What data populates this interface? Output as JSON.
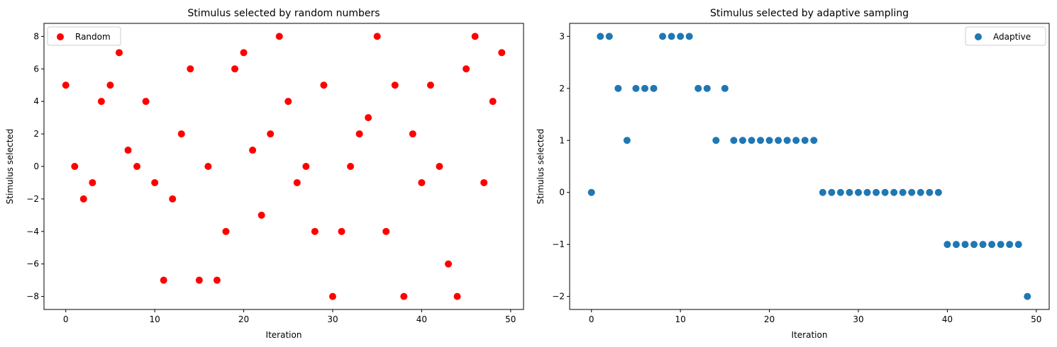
{
  "chart_data": [
    {
      "type": "scatter",
      "title": "Stimulus selected by random numbers",
      "xlabel": "Iteration",
      "ylabel": "Stimulus selected",
      "xlim": [
        -2.45,
        51.45
      ],
      "ylim": [
        -8.8,
        8.8
      ],
      "xticks": [
        0,
        10,
        20,
        30,
        40,
        50
      ],
      "yticks": [
        -8,
        -6,
        -4,
        -2,
        0,
        2,
        4,
        6,
        8
      ],
      "grid": false,
      "legend_position": "upper-left",
      "series": [
        {
          "name": "Random",
          "color": "#ff0000",
          "x": [
            0,
            1,
            2,
            3,
            4,
            5,
            6,
            7,
            8,
            9,
            10,
            11,
            12,
            13,
            14,
            15,
            16,
            17,
            18,
            19,
            20,
            21,
            22,
            23,
            24,
            25,
            26,
            27,
            28,
            29,
            30,
            31,
            32,
            33,
            34,
            35,
            36,
            37,
            38,
            39,
            40,
            41,
            42,
            43,
            44,
            45,
            46,
            47,
            48,
            49
          ],
          "y": [
            5,
            0,
            -2,
            -1,
            4,
            5,
            7,
            1,
            0,
            4,
            -1,
            -7,
            -2,
            2,
            6,
            -7,
            0,
            -7,
            -4,
            6,
            7,
            1,
            -3,
            2,
            8,
            4,
            -1,
            0,
            -4,
            5,
            -8,
            -4,
            0,
            2,
            3,
            8,
            -4,
            5,
            -8,
            2,
            -1,
            5,
            0,
            -6,
            -8,
            6,
            8,
            -1,
            4,
            7
          ]
        }
      ]
    },
    {
      "type": "scatter",
      "title": "Stimulus selected by adaptive sampling",
      "xlabel": "Iteration",
      "ylabel": "Stimulus selected",
      "xlim": [
        -2.45,
        51.45
      ],
      "ylim": [
        -2.25,
        3.25
      ],
      "xticks": [
        0,
        10,
        20,
        30,
        40,
        50
      ],
      "yticks": [
        -2,
        -1,
        0,
        1,
        2,
        3
      ],
      "grid": false,
      "legend_position": "upper-right",
      "series": [
        {
          "name": "Adaptive",
          "color": "#1f77b4",
          "x": [
            0,
            1,
            2,
            3,
            4,
            5,
            6,
            7,
            8,
            9,
            10,
            11,
            12,
            13,
            14,
            15,
            16,
            17,
            18,
            19,
            20,
            21,
            22,
            23,
            24,
            25,
            26,
            27,
            28,
            29,
            30,
            31,
            32,
            33,
            34,
            35,
            36,
            37,
            38,
            39,
            40,
            41,
            42,
            43,
            44,
            45,
            46,
            47,
            48,
            49
          ],
          "y": [
            0,
            3,
            3,
            2,
            1,
            2,
            2,
            2,
            3,
            3,
            3,
            3,
            2,
            2,
            1,
            2,
            1,
            1,
            1,
            1,
            1,
            1,
            1,
            1,
            1,
            1,
            0,
            0,
            0,
            0,
            0,
            0,
            0,
            0,
            0,
            0,
            0,
            0,
            0,
            0,
            -1,
            -1,
            -1,
            -1,
            -1,
            -1,
            -1,
            -1,
            -1,
            -2
          ]
        }
      ]
    }
  ]
}
